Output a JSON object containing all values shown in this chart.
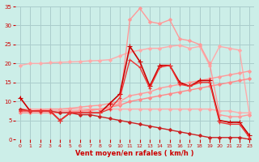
{
  "bg_color": "#cceee8",
  "grid_color": "#aacccc",
  "xlabel": "Vent moyen/en rafales ( km/h )",
  "xlabel_color": "#cc0000",
  "tick_label_color": "#cc0000",
  "xlim": [
    -0.5,
    23.5
  ],
  "ylim": [
    0,
    35
  ],
  "yticks": [
    0,
    5,
    10,
    15,
    20,
    25,
    30,
    35
  ],
  "xticks": [
    0,
    1,
    2,
    3,
    4,
    5,
    6,
    7,
    8,
    9,
    10,
    11,
    12,
    13,
    14,
    15,
    16,
    17,
    18,
    19,
    20,
    21,
    22,
    23
  ],
  "lines": [
    {
      "x": [
        0,
        1,
        2,
        3,
        4,
        5,
        6,
        7,
        8,
        9,
        10,
        11,
        12,
        13,
        14,
        15,
        16,
        17,
        18,
        19,
        20,
        21,
        22,
        23
      ],
      "y": [
        19.5,
        20.0,
        20.0,
        20.2,
        20.3,
        20.4,
        20.5,
        20.7,
        20.8,
        21.0,
        22.0,
        23.0,
        23.5,
        24.0,
        24.0,
        24.5,
        24.8,
        24.0,
        24.5,
        19.5,
        24.5,
        24.0,
        23.5,
        6.5
      ],
      "color": "#ffaaaa",
      "lw": 1.0,
      "marker": "D",
      "ms": 2.0
    },
    {
      "x": [
        0,
        1,
        2,
        3,
        4,
        5,
        6,
        7,
        8,
        9,
        10,
        11,
        12,
        13,
        14,
        15,
        16,
        17,
        18,
        19,
        20,
        21,
        22,
        23
      ],
      "y": [
        8.0,
        8.0,
        8.0,
        8.0,
        8.0,
        8.0,
        8.0,
        8.0,
        8.0,
        8.0,
        8.0,
        8.0,
        8.0,
        8.0,
        8.0,
        8.0,
        8.0,
        8.0,
        8.0,
        8.0,
        7.5,
        7.5,
        7.0,
        7.0
      ],
      "color": "#ffaaaa",
      "lw": 1.0,
      "marker": "D",
      "ms": 2.0
    },
    {
      "x": [
        0,
        1,
        2,
        3,
        4,
        5,
        6,
        7,
        8,
        9,
        10,
        11,
        12,
        13,
        14,
        15,
        16,
        17,
        18,
        19,
        20,
        21,
        22,
        23
      ],
      "y": [
        7.5,
        7.5,
        7.8,
        8.0,
        8.0,
        8.2,
        8.5,
        8.8,
        9.0,
        9.5,
        10.0,
        11.5,
        12.0,
        12.5,
        13.5,
        14.0,
        14.5,
        15.0,
        15.5,
        16.0,
        16.5,
        17.0,
        17.5,
        18.0
      ],
      "color": "#ff9999",
      "lw": 1.0,
      "marker": "D",
      "ms": 2.0
    },
    {
      "x": [
        0,
        1,
        2,
        3,
        4,
        5,
        6,
        7,
        8,
        9,
        10,
        11,
        12,
        13,
        14,
        15,
        16,
        17,
        18,
        19,
        20,
        21,
        22,
        23
      ],
      "y": [
        7.0,
        7.0,
        7.0,
        7.0,
        7.0,
        7.2,
        7.5,
        7.8,
        8.0,
        8.5,
        9.0,
        10.0,
        10.5,
        11.0,
        11.5,
        12.0,
        12.5,
        13.0,
        13.5,
        14.0,
        14.5,
        15.0,
        15.5,
        16.0
      ],
      "color": "#ff8888",
      "lw": 1.0,
      "marker": "D",
      "ms": 2.0
    },
    {
      "x": [
        0,
        1,
        2,
        3,
        4,
        5,
        6,
        7,
        8,
        9,
        10,
        11,
        12,
        13,
        14,
        15,
        16,
        17,
        18,
        19,
        20,
        21,
        22,
        23
      ],
      "y": [
        7.5,
        7.5,
        7.5,
        7.5,
        7.5,
        7.5,
        7.5,
        7.5,
        8.0,
        8.5,
        9.5,
        31.5,
        34.5,
        31.0,
        30.5,
        31.5,
        26.5,
        26.0,
        25.0,
        20.0,
        6.5,
        6.0,
        6.0,
        6.5
      ],
      "color": "#ff9999",
      "lw": 1.0,
      "marker": "D",
      "ms": 2.0
    },
    {
      "x": [
        0,
        1,
        2,
        3,
        4,
        5,
        6,
        7,
        8,
        9,
        10,
        11,
        12,
        13,
        14,
        15,
        16,
        17,
        18,
        19,
        20,
        21,
        22,
        23
      ],
      "y": [
        11.0,
        7.5,
        7.5,
        7.5,
        5.0,
        7.0,
        7.0,
        7.0,
        7.0,
        9.5,
        12.0,
        24.5,
        20.5,
        14.0,
        19.5,
        19.5,
        15.0,
        14.0,
        15.5,
        15.5,
        5.0,
        4.5,
        4.5,
        1.0
      ],
      "color": "#cc0000",
      "lw": 1.2,
      "marker": "+",
      "ms": 4.0
    },
    {
      "x": [
        0,
        1,
        2,
        3,
        4,
        5,
        6,
        7,
        8,
        9,
        10,
        11,
        12,
        13,
        14,
        15,
        16,
        17,
        18,
        19,
        20,
        21,
        22,
        23
      ],
      "y": [
        8.0,
        7.5,
        7.5,
        7.5,
        7.0,
        7.0,
        6.5,
        6.5,
        6.0,
        5.5,
        5.0,
        4.5,
        4.0,
        3.5,
        3.0,
        2.5,
        2.0,
        1.5,
        1.0,
        0.5,
        0.5,
        0.5,
        0.5,
        0.0
      ],
      "color": "#cc2222",
      "lw": 1.0,
      "marker": "D",
      "ms": 2.0
    },
    {
      "x": [
        0,
        1,
        2,
        3,
        4,
        5,
        6,
        7,
        8,
        9,
        10,
        11,
        12,
        13,
        14,
        15,
        16,
        17,
        18,
        19,
        20,
        21,
        22,
        23
      ],
      "y": [
        7.5,
        7.5,
        7.5,
        7.5,
        5.0,
        7.0,
        7.0,
        7.0,
        7.0,
        8.0,
        11.0,
        21.0,
        19.0,
        13.5,
        19.0,
        19.5,
        14.5,
        14.0,
        15.0,
        15.0,
        4.5,
        4.0,
        4.0,
        0.5
      ],
      "color": "#ee3333",
      "lw": 1.0,
      "marker": "+",
      "ms": 3.5
    }
  ]
}
